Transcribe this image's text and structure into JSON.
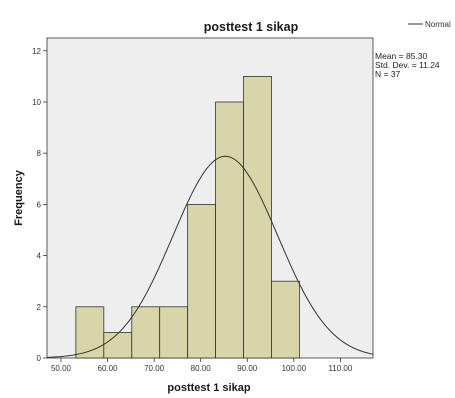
{
  "chart_data": {
    "type": "bar",
    "title": "posttest 1 sikap",
    "xlabel": "posttest 1 sikap",
    "ylabel": "Frequency",
    "xlim": [
      47,
      117
    ],
    "ylim": [
      0,
      12.5
    ],
    "x_ticks": [
      "50.00",
      "60.00",
      "70.00",
      "80.00",
      "90.00",
      "100.00",
      "110.00"
    ],
    "x_tick_values": [
      50,
      60,
      70,
      80,
      90,
      100,
      110
    ],
    "y_ticks": [
      0,
      2,
      4,
      6,
      8,
      10,
      12
    ],
    "bins": [
      {
        "start": 53.2,
        "end": 59.2,
        "count": 2
      },
      {
        "start": 59.2,
        "end": 65.2,
        "count": 1
      },
      {
        "start": 65.2,
        "end": 71.2,
        "count": 2
      },
      {
        "start": 71.2,
        "end": 77.2,
        "count": 2
      },
      {
        "start": 77.2,
        "end": 83.2,
        "count": 6
      },
      {
        "start": 83.2,
        "end": 89.2,
        "count": 10
      },
      {
        "start": 89.2,
        "end": 95.2,
        "count": 11
      },
      {
        "start": 95.2,
        "end": 101.2,
        "count": 3
      }
    ],
    "normal_curve": {
      "name": "Normal",
      "mean": 85.3,
      "std_dev": 11.24,
      "n": 37,
      "bin_width": 6
    },
    "stats": [
      "Mean = 85.30",
      "Std. Dev. = 11.24",
      "N = 37"
    ],
    "legend": {
      "position": "top-right",
      "entries": [
        "Normal"
      ]
    },
    "grid": false,
    "colors": {
      "bar_fill": "#d8d5a8",
      "bar_stroke": "#333333",
      "plot_bg": "#eeeeee",
      "curve": "#333333"
    }
  }
}
